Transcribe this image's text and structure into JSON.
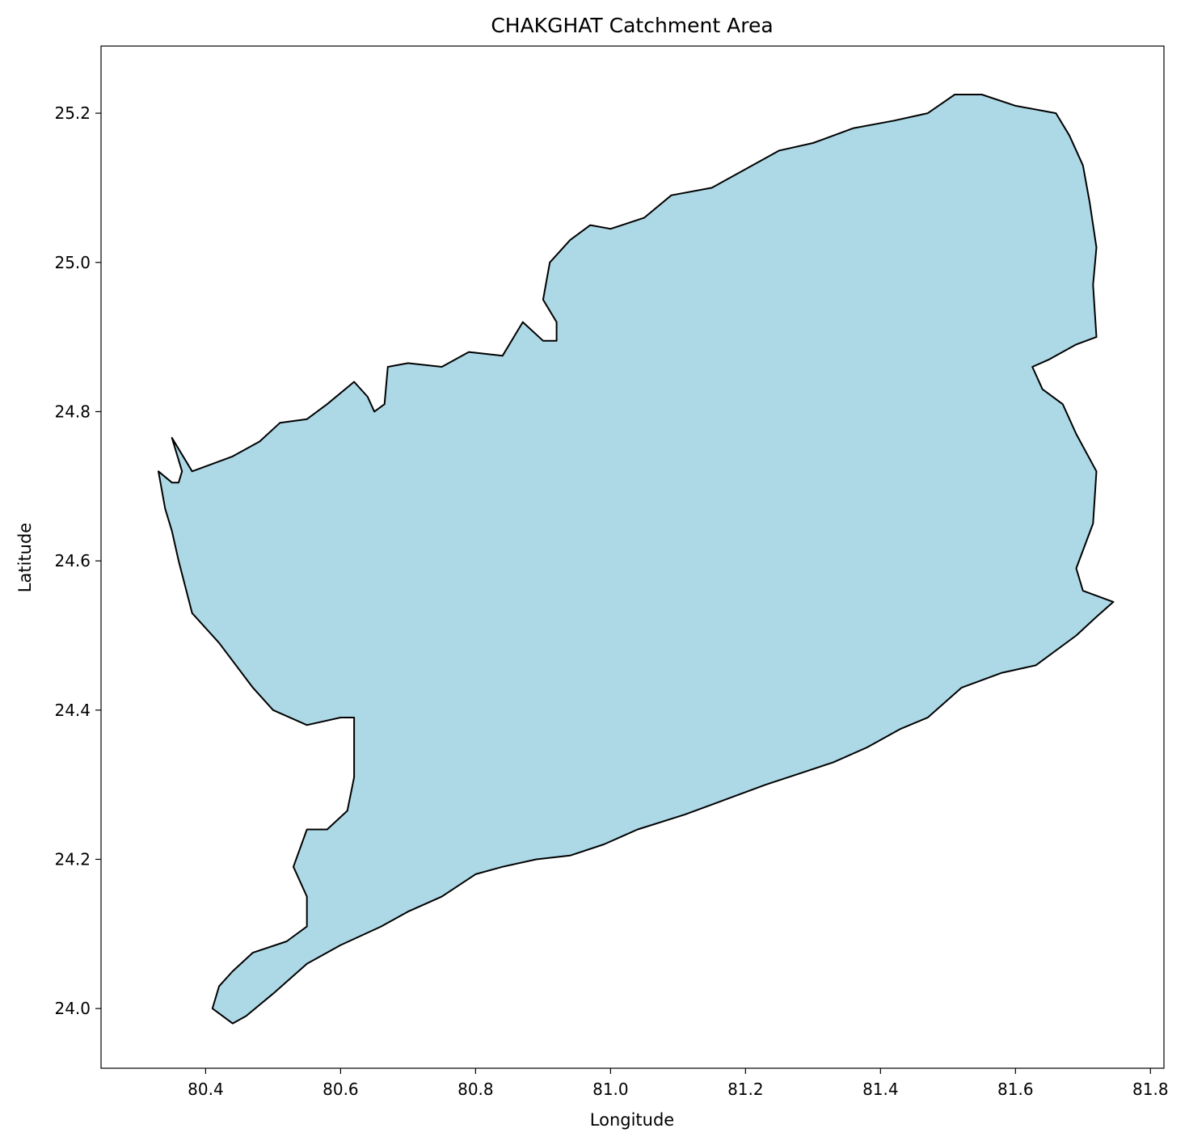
{
  "chart_data": {
    "type": "map",
    "title": "CHAKGHAT Catchment Area",
    "xlabel": "Longitude",
    "ylabel": "Latitude",
    "xlim": [
      80.245,
      81.82
    ],
    "ylim": [
      23.92,
      25.29
    ],
    "xticks": [
      "80.4",
      "80.6",
      "80.8",
      "81.0",
      "81.2",
      "81.4",
      "81.6",
      "81.8"
    ],
    "yticks": [
      "24.0",
      "24.2",
      "24.4",
      "24.6",
      "24.8",
      "25.0",
      "25.2"
    ],
    "grid": false,
    "fill_color": "#add8e6",
    "edge_color": "#000000",
    "polygon": [
      [
        80.44,
        23.98
      ],
      [
        80.41,
        24.0
      ],
      [
        80.42,
        24.03
      ],
      [
        80.44,
        24.05
      ],
      [
        80.47,
        24.075
      ],
      [
        80.52,
        24.09
      ],
      [
        80.55,
        24.11
      ],
      [
        80.55,
        24.15
      ],
      [
        80.53,
        24.19
      ],
      [
        80.55,
        24.24
      ],
      [
        80.58,
        24.24
      ],
      [
        80.61,
        24.265
      ],
      [
        80.62,
        24.31
      ],
      [
        80.62,
        24.39
      ],
      [
        80.6,
        24.39
      ],
      [
        80.55,
        24.38
      ],
      [
        80.5,
        24.4
      ],
      [
        80.47,
        24.43
      ],
      [
        80.42,
        24.49
      ],
      [
        80.38,
        24.53
      ],
      [
        80.36,
        24.6
      ],
      [
        80.35,
        24.64
      ],
      [
        80.34,
        24.67
      ],
      [
        80.33,
        24.72
      ],
      [
        80.35,
        24.705
      ],
      [
        80.36,
        24.705
      ],
      [
        80.365,
        24.72
      ],
      [
        80.35,
        24.765
      ],
      [
        80.38,
        24.72
      ],
      [
        80.44,
        24.74
      ],
      [
        80.48,
        24.76
      ],
      [
        80.51,
        24.785
      ],
      [
        80.55,
        24.79
      ],
      [
        80.58,
        24.81
      ],
      [
        80.62,
        24.84
      ],
      [
        80.64,
        24.82
      ],
      [
        80.65,
        24.8
      ],
      [
        80.665,
        24.81
      ],
      [
        80.67,
        24.86
      ],
      [
        80.7,
        24.865
      ],
      [
        80.75,
        24.86
      ],
      [
        80.79,
        24.88
      ],
      [
        80.84,
        24.875
      ],
      [
        80.87,
        24.92
      ],
      [
        80.9,
        24.895
      ],
      [
        80.92,
        24.895
      ],
      [
        80.92,
        24.92
      ],
      [
        80.9,
        24.95
      ],
      [
        80.91,
        25.0
      ],
      [
        80.94,
        25.03
      ],
      [
        80.97,
        25.05
      ],
      [
        81.0,
        25.045
      ],
      [
        81.05,
        25.06
      ],
      [
        81.09,
        25.09
      ],
      [
        81.15,
        25.1
      ],
      [
        81.2,
        25.125
      ],
      [
        81.25,
        25.15
      ],
      [
        81.3,
        25.16
      ],
      [
        81.36,
        25.18
      ],
      [
        81.42,
        25.19
      ],
      [
        81.47,
        25.2
      ],
      [
        81.51,
        25.225
      ],
      [
        81.55,
        25.225
      ],
      [
        81.6,
        25.21
      ],
      [
        81.66,
        25.2
      ],
      [
        81.68,
        25.17
      ],
      [
        81.7,
        25.13
      ],
      [
        81.71,
        25.08
      ],
      [
        81.72,
        25.02
      ],
      [
        81.715,
        24.97
      ],
      [
        81.72,
        24.9
      ],
      [
        81.69,
        24.89
      ],
      [
        81.65,
        24.87
      ],
      [
        81.625,
        24.86
      ],
      [
        81.64,
        24.83
      ],
      [
        81.67,
        24.81
      ],
      [
        81.69,
        24.77
      ],
      [
        81.72,
        24.72
      ],
      [
        81.715,
        24.65
      ],
      [
        81.69,
        24.59
      ],
      [
        81.7,
        24.56
      ],
      [
        81.745,
        24.545
      ],
      [
        81.72,
        24.525
      ],
      [
        81.69,
        24.5
      ],
      [
        81.63,
        24.46
      ],
      [
        81.58,
        24.45
      ],
      [
        81.52,
        24.43
      ],
      [
        81.47,
        24.39
      ],
      [
        81.43,
        24.375
      ],
      [
        81.38,
        24.35
      ],
      [
        81.33,
        24.33
      ],
      [
        81.28,
        24.315
      ],
      [
        81.23,
        24.3
      ],
      [
        81.17,
        24.28
      ],
      [
        81.11,
        24.26
      ],
      [
        81.04,
        24.24
      ],
      [
        80.99,
        24.22
      ],
      [
        80.94,
        24.205
      ],
      [
        80.89,
        24.2
      ],
      [
        80.84,
        24.19
      ],
      [
        80.8,
        24.18
      ],
      [
        80.75,
        24.15
      ],
      [
        80.7,
        24.13
      ],
      [
        80.66,
        24.11
      ],
      [
        80.6,
        24.085
      ],
      [
        80.55,
        24.06
      ],
      [
        80.5,
        24.02
      ],
      [
        80.46,
        23.99
      ],
      [
        80.44,
        23.98
      ]
    ]
  }
}
